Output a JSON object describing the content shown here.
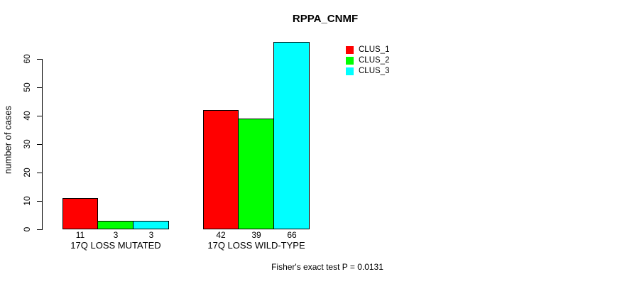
{
  "chart_data": {
    "type": "bar",
    "title": "RPPA_CNMF",
    "xlabel": "",
    "ylabel": "number of cases",
    "ylim": [
      0,
      60
    ],
    "yticks": [
      0,
      10,
      20,
      30,
      40,
      50,
      60
    ],
    "grid": false,
    "legend_position": "top-right-inside",
    "categories": [
      "17Q LOSS MUTATED",
      "17Q LOSS WILD-TYPE"
    ],
    "series": [
      {
        "name": "CLUS_1",
        "color": "#ff0000",
        "values": [
          11,
          42
        ]
      },
      {
        "name": "CLUS_2",
        "color": "#00ff00",
        "values": [
          3,
          39
        ]
      },
      {
        "name": "CLUS_3",
        "color": "#00ffff",
        "values": [
          3,
          66
        ]
      }
    ],
    "bar_value_labels_shown": true,
    "annotation": "Fisher's exact test P = 0.0131"
  }
}
